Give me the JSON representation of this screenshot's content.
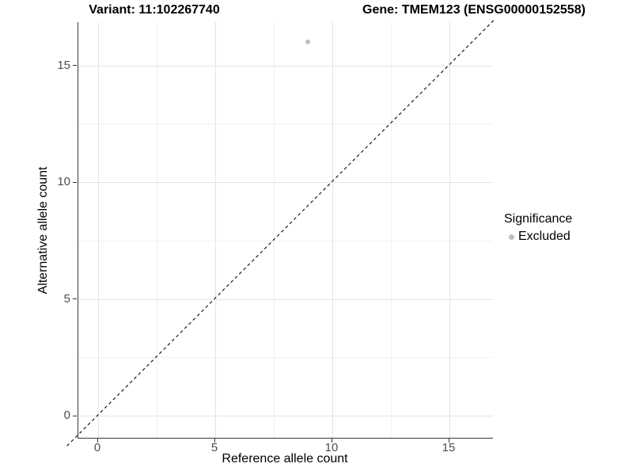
{
  "chart_data": {
    "type": "scatter",
    "title_variant": "Variant: 11:102267740",
    "title_gene": "Gene: TMEM123 (ENSG00000152558)",
    "xlabel": "Reference allele count",
    "ylabel": "Alternative allele count",
    "xlim": [
      -0.9,
      16.9
    ],
    "ylim": [
      -1.0,
      16.9
    ],
    "xticks": [
      0,
      5,
      10,
      15
    ],
    "yticks": [
      0,
      5,
      10,
      15
    ],
    "xticks_minor": [
      2.5,
      7.5,
      12.5
    ],
    "yticks_minor": [
      2.5,
      7.5,
      12.5
    ],
    "grid": "major-and-minor",
    "background": "#ffffff",
    "axis_line_color": "#383838",
    "series": [
      {
        "name": "Excluded",
        "color": "#bec1c3",
        "points": [
          {
            "x": 9,
            "y": 16
          }
        ]
      }
    ],
    "identity_line": {
      "style": "dashed",
      "slope": 1,
      "intercept": 0,
      "color": "#1a1a1a"
    },
    "legend": {
      "title": "Significance",
      "position": "right",
      "items": [
        {
          "label": "Excluded",
          "color": "#bec1c3",
          "marker": "circle-icon"
        }
      ]
    }
  }
}
